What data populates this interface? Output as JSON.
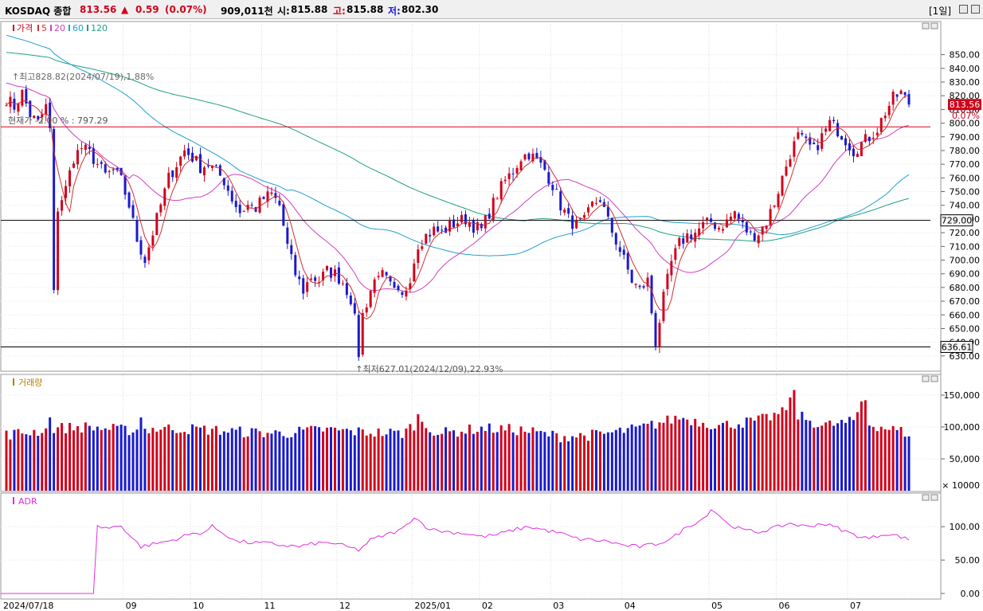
{
  "header": {
    "index_name": "KOSDAQ 종합",
    "price": "813.56",
    "change_arrow": "▲",
    "change": "0.59",
    "change_pct": "(0.07%)",
    "trade_value": "909,011천",
    "open_label": "시:",
    "open_value": "815.88",
    "high_label": "고:",
    "high_value": "815.88",
    "low_label": "저:",
    "low_value": "802.30",
    "period_button": "[1일]"
  },
  "colors": {
    "up": "#d0021b",
    "down": "#1a1acc",
    "ma5": "#d03030",
    "ma20": "#d040c0",
    "ma60": "#20a0d0",
    "ma120": "#20a080",
    "adr": "#e030e0",
    "volume_label": "#b08000"
  },
  "chart_data": [
    {
      "type": "candlestick",
      "legend": [
        {
          "label": "가격",
          "color": "#d0021b"
        },
        {
          "label": "5",
          "color": "#d03030"
        },
        {
          "label": "20",
          "color": "#d040c0"
        },
        {
          "label": "60",
          "color": "#20a0d0"
        },
        {
          "label": "120",
          "color": "#20a080"
        }
      ],
      "ylim": [
        627,
        855
      ],
      "y_ticks": [
        630,
        640,
        650,
        660,
        670,
        680,
        690,
        700,
        710,
        720,
        730,
        740,
        750,
        760,
        770,
        780,
        790,
        800,
        810,
        820,
        830,
        840,
        850
      ],
      "y_tick_labels": [
        "630.00",
        "640.00",
        "650.00",
        "660.00",
        "670.00",
        "680.00",
        "690.00",
        "700.00",
        "710.00",
        "720.00",
        "730.00",
        "740.00",
        "750.00",
        "760.00",
        "770.00",
        "780.00",
        "790.00",
        "800.00",
        "810.00",
        "820.00",
        "830.00",
        "840.00",
        "850.00"
      ],
      "x_labels": [
        "2024/07/18",
        "09",
        "10",
        "11",
        "12",
        "2025/01",
        "02",
        "03",
        "04",
        "05",
        "06",
        "07"
      ],
      "x_label_positions": [
        0,
        30,
        47,
        65,
        84,
        103,
        120,
        138,
        156,
        178,
        195,
        213
      ],
      "n_days": 229,
      "current_price": 813.56,
      "current_price_label": "813.56",
      "current_change_label": "0.07%",
      "close_anchors": [
        [
          0,
          818
        ],
        [
          2,
          812
        ],
        [
          4,
          822
        ],
        [
          6,
          806
        ],
        [
          8,
          800
        ],
        [
          10,
          812
        ],
        [
          11,
          795
        ],
        [
          12,
          675
        ],
        [
          13,
          738
        ],
        [
          15,
          752
        ],
        [
          17,
          775
        ],
        [
          19,
          782
        ],
        [
          21,
          778
        ],
        [
          23,
          770
        ],
        [
          25,
          762
        ],
        [
          27,
          765
        ],
        [
          29,
          758
        ],
        [
          31,
          740
        ],
        [
          33,
          715
        ],
        [
          35,
          700
        ],
        [
          37,
          720
        ],
        [
          39,
          740
        ],
        [
          41,
          760
        ],
        [
          43,
          770
        ],
        [
          45,
          780
        ],
        [
          47,
          775
        ],
        [
          49,
          768
        ],
        [
          51,
          770
        ],
        [
          53,
          765
        ],
        [
          55,
          758
        ],
        [
          57,
          745
        ],
        [
          59,
          735
        ],
        [
          61,
          740
        ],
        [
          63,
          738
        ],
        [
          65,
          745
        ],
        [
          67,
          748
        ],
        [
          69,
          740
        ],
        [
          71,
          710
        ],
        [
          73,
          690
        ],
        [
          75,
          678
        ],
        [
          77,
          688
        ],
        [
          79,
          685
        ],
        [
          81,
          692
        ],
        [
          83,
          690
        ],
        [
          85,
          684
        ],
        [
          87,
          672
        ],
        [
          88,
          656
        ],
        [
          89,
          632
        ],
        [
          90,
          660
        ],
        [
          92,
          678
        ],
        [
          94,
          692
        ],
        [
          96,
          685
        ],
        [
          98,
          676
        ],
        [
          100,
          672
        ],
        [
          102,
          688
        ],
        [
          104,
          712
        ],
        [
          106,
          718
        ],
        [
          108,
          722
        ],
        [
          110,
          720
        ],
        [
          112,
          725
        ],
        [
          114,
          728
        ],
        [
          116,
          730
        ],
        [
          118,
          725
        ],
        [
          120,
          722
        ],
        [
          122,
          735
        ],
        [
          124,
          748
        ],
        [
          126,
          758
        ],
        [
          128,
          765
        ],
        [
          130,
          775
        ],
        [
          132,
          778
        ],
        [
          134,
          772
        ],
        [
          136,
          766
        ],
        [
          138,
          755
        ],
        [
          140,
          740
        ],
        [
          142,
          730
        ],
        [
          144,
          725
        ],
        [
          146,
          728
        ],
        [
          148,
          740
        ],
        [
          150,
          745
        ],
        [
          152,
          728
        ],
        [
          154,
          714
        ],
        [
          156,
          700
        ],
        [
          158,
          685
        ],
        [
          160,
          678
        ],
        [
          162,
          685
        ],
        [
          163,
          662
        ],
        [
          164,
          640
        ],
        [
          166,
          672
        ],
        [
          168,
          698
        ],
        [
          170,
          712
        ],
        [
          172,
          718
        ],
        [
          174,
          720
        ],
        [
          176,
          725
        ],
        [
          178,
          728
        ],
        [
          180,
          724
        ],
        [
          182,
          728
        ],
        [
          184,
          735
        ],
        [
          186,
          725
        ],
        [
          188,
          718
        ],
        [
          190,
          720
        ],
        [
          192,
          728
        ],
        [
          194,
          742
        ],
        [
          196,
          760
        ],
        [
          198,
          778
        ],
        [
          200,
          790
        ],
        [
          202,
          785
        ],
        [
          204,
          780
        ],
        [
          206,
          790
        ],
        [
          208,
          800
        ],
        [
          210,
          795
        ],
        [
          212,
          788
        ],
        [
          214,
          780
        ],
        [
          216,
          785
        ],
        [
          218,
          790
        ],
        [
          220,
          796
        ],
        [
          222,
          808
        ],
        [
          224,
          818
        ],
        [
          226,
          822
        ],
        [
          228,
          813.56
        ]
      ],
      "annotations": [
        {
          "label": "최고828.82(2024/07/19),1.88%",
          "day": 1,
          "price": 828.82
        },
        {
          "label": "최저627.01(2024/12/09),22.93%",
          "day": 89,
          "price": 627.01
        },
        {
          "label": "현재가 -2.00 % : 797.29",
          "price": 797.29
        }
      ],
      "horizontal_lines": [
        {
          "price": 797.29,
          "color": "#d0021b"
        },
        {
          "price": 729.0,
          "label": "729.00",
          "color": "#000000"
        },
        {
          "price": 636.61,
          "label": "636.61",
          "color": "#000000"
        }
      ]
    },
    {
      "type": "bar",
      "legend": [
        {
          "label": "거래량",
          "color": "#b08000"
        }
      ],
      "ylim": [
        0,
        165
      ],
      "y_ticks": [
        50,
        100,
        150
      ],
      "y_tick_labels": [
        "50,000",
        "100,000",
        "150,000"
      ],
      "unit_label": "× 10000",
      "volume_anchors": [
        [
          0,
          88
        ],
        [
          10,
          95
        ],
        [
          12,
          98
        ],
        [
          20,
          100
        ],
        [
          30,
          95
        ],
        [
          40,
          98
        ],
        [
          50,
          96
        ],
        [
          60,
          92
        ],
        [
          70,
          90
        ],
        [
          80,
          96
        ],
        [
          90,
          92
        ],
        [
          100,
          90
        ],
        [
          104,
          108
        ],
        [
          106,
          100
        ],
        [
          110,
          90
        ],
        [
          120,
          98
        ],
        [
          130,
          95
        ],
        [
          140,
          85
        ],
        [
          150,
          88
        ],
        [
          160,
          98
        ],
        [
          170,
          115
        ],
        [
          180,
          102
        ],
        [
          190,
          110
        ],
        [
          196,
          122
        ],
        [
          198,
          140
        ],
        [
          200,
          118
        ],
        [
          206,
          102
        ],
        [
          214,
          108
        ],
        [
          216,
          140
        ],
        [
          218,
          105
        ],
        [
          228,
          90
        ]
      ],
      "volume_spikes": [
        [
          11,
          115
        ],
        [
          34,
          115
        ],
        [
          104,
          120
        ],
        [
          199,
          158
        ],
        [
          217,
          142
        ]
      ]
    },
    {
      "type": "line",
      "legend": [
        {
          "label": "ADR",
          "color": "#e030e0"
        }
      ],
      "ylim": [
        0,
        130
      ],
      "y_ticks": [
        0,
        50,
        100
      ],
      "y_tick_labels": [
        "0.00",
        "50.00",
        "100.00"
      ],
      "adr_start_day": 22,
      "adr_anchors": [
        [
          22,
          0
        ],
        [
          23,
          100
        ],
        [
          26,
          98
        ],
        [
          29,
          102
        ],
        [
          31,
          88
        ],
        [
          34,
          70
        ],
        [
          38,
          75
        ],
        [
          42,
          80
        ],
        [
          46,
          88
        ],
        [
          50,
          92
        ],
        [
          52,
          100
        ],
        [
          55,
          90
        ],
        [
          58,
          78
        ],
        [
          62,
          76
        ],
        [
          66,
          75
        ],
        [
          70,
          72
        ],
        [
          74,
          70
        ],
        [
          78,
          75
        ],
        [
          82,
          76
        ],
        [
          86,
          70
        ],
        [
          89,
          65
        ],
        [
          92,
          80
        ],
        [
          96,
          88
        ],
        [
          100,
          96
        ],
        [
          103,
          115
        ],
        [
          106,
          100
        ],
        [
          108,
          95
        ],
        [
          112,
          92
        ],
        [
          116,
          90
        ],
        [
          120,
          85
        ],
        [
          124,
          88
        ],
        [
          128,
          95
        ],
        [
          132,
          100
        ],
        [
          136,
          95
        ],
        [
          140,
          90
        ],
        [
          144,
          82
        ],
        [
          148,
          80
        ],
        [
          152,
          78
        ],
        [
          156,
          72
        ],
        [
          160,
          70
        ],
        [
          164,
          74
        ],
        [
          168,
          82
        ],
        [
          172,
          100
        ],
        [
          176,
          112
        ],
        [
          178,
          126
        ],
        [
          180,
          118
        ],
        [
          182,
          105
        ],
        [
          186,
          95
        ],
        [
          190,
          92
        ],
        [
          194,
          98
        ],
        [
          198,
          105
        ],
        [
          202,
          100
        ],
        [
          206,
          105
        ],
        [
          210,
          98
        ],
        [
          214,
          88
        ],
        [
          218,
          82
        ],
        [
          222,
          90
        ],
        [
          226,
          85
        ],
        [
          228,
          80
        ]
      ]
    }
  ]
}
